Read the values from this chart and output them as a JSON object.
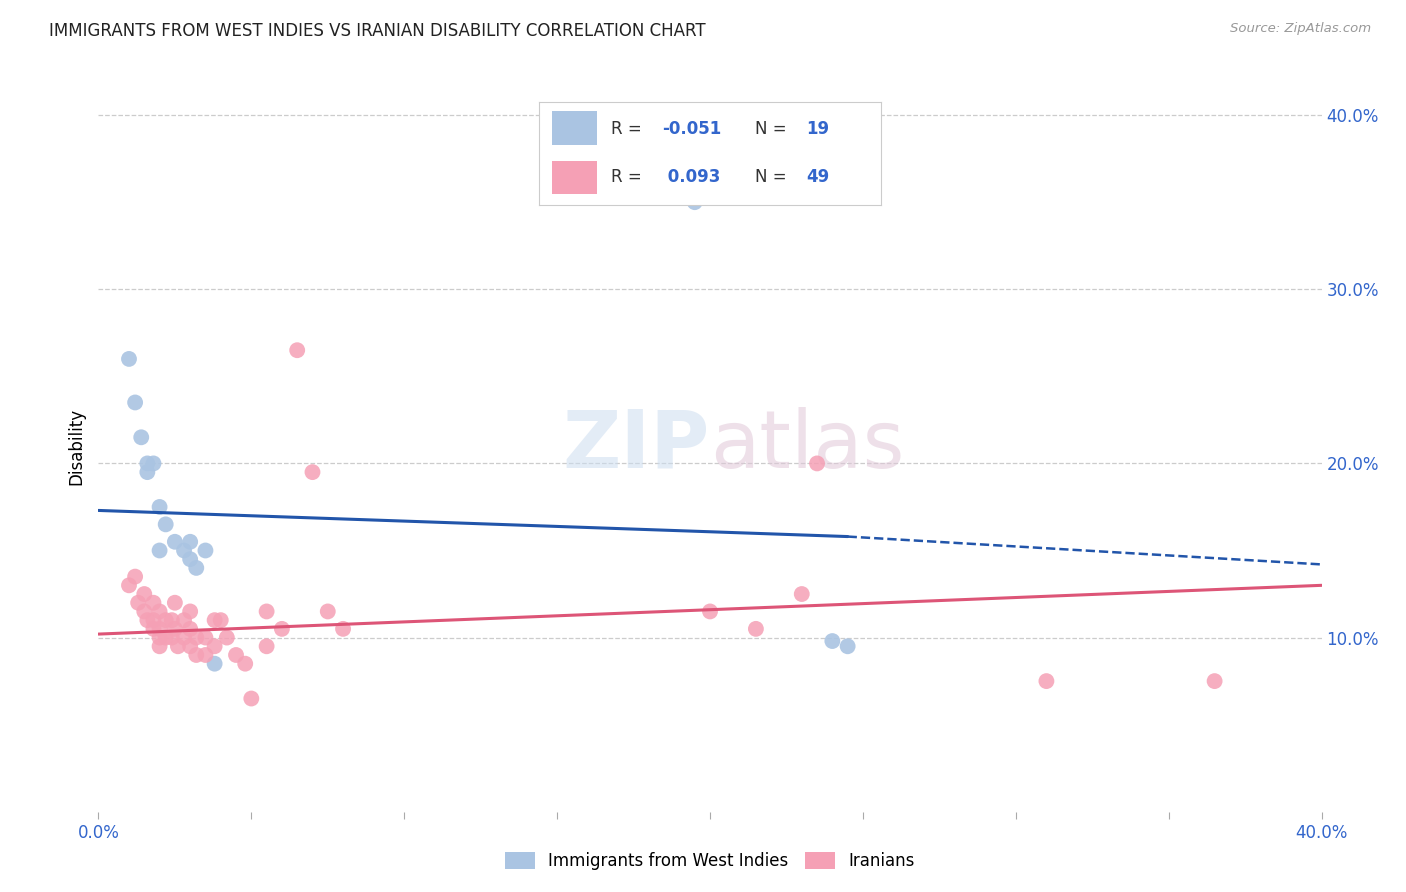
{
  "title": "IMMIGRANTS FROM WEST INDIES VS IRANIAN DISABILITY CORRELATION CHART",
  "source": "Source: ZipAtlas.com",
  "ylabel": "Disability",
  "xlim": [
    0.0,
    0.4
  ],
  "ylim": [
    0.0,
    0.42
  ],
  "R_blue": -0.051,
  "N_blue": 19,
  "R_pink": 0.093,
  "N_pink": 49,
  "blue_color": "#aac4e2",
  "pink_color": "#f5a0b5",
  "line_blue_color": "#2255aa",
  "line_pink_color": "#dd5577",
  "blue_scatter": [
    [
      0.01,
      0.26
    ],
    [
      0.012,
      0.235
    ],
    [
      0.014,
      0.215
    ],
    [
      0.016,
      0.2
    ],
    [
      0.016,
      0.195
    ],
    [
      0.018,
      0.2
    ],
    [
      0.02,
      0.175
    ],
    [
      0.02,
      0.15
    ],
    [
      0.022,
      0.165
    ],
    [
      0.025,
      0.155
    ],
    [
      0.028,
      0.15
    ],
    [
      0.03,
      0.155
    ],
    [
      0.03,
      0.145
    ],
    [
      0.032,
      0.14
    ],
    [
      0.035,
      0.15
    ],
    [
      0.038,
      0.085
    ],
    [
      0.195,
      0.35
    ],
    [
      0.24,
      0.098
    ],
    [
      0.245,
      0.095
    ]
  ],
  "pink_scatter": [
    [
      0.01,
      0.13
    ],
    [
      0.012,
      0.135
    ],
    [
      0.013,
      0.12
    ],
    [
      0.015,
      0.125
    ],
    [
      0.015,
      0.115
    ],
    [
      0.016,
      0.11
    ],
    [
      0.018,
      0.12
    ],
    [
      0.018,
      0.11
    ],
    [
      0.018,
      0.105
    ],
    [
      0.02,
      0.115
    ],
    [
      0.02,
      0.105
    ],
    [
      0.02,
      0.1
    ],
    [
      0.02,
      0.095
    ],
    [
      0.022,
      0.11
    ],
    [
      0.022,
      0.1
    ],
    [
      0.024,
      0.11
    ],
    [
      0.024,
      0.1
    ],
    [
      0.025,
      0.12
    ],
    [
      0.025,
      0.105
    ],
    [
      0.026,
      0.095
    ],
    [
      0.028,
      0.11
    ],
    [
      0.028,
      0.1
    ],
    [
      0.03,
      0.115
    ],
    [
      0.03,
      0.105
    ],
    [
      0.03,
      0.095
    ],
    [
      0.032,
      0.1
    ],
    [
      0.032,
      0.09
    ],
    [
      0.035,
      0.1
    ],
    [
      0.035,
      0.09
    ],
    [
      0.038,
      0.11
    ],
    [
      0.038,
      0.095
    ],
    [
      0.04,
      0.11
    ],
    [
      0.042,
      0.1
    ],
    [
      0.045,
      0.09
    ],
    [
      0.048,
      0.085
    ],
    [
      0.05,
      0.065
    ],
    [
      0.055,
      0.115
    ],
    [
      0.055,
      0.095
    ],
    [
      0.06,
      0.105
    ],
    [
      0.065,
      0.265
    ],
    [
      0.07,
      0.195
    ],
    [
      0.075,
      0.115
    ],
    [
      0.2,
      0.115
    ],
    [
      0.215,
      0.105
    ],
    [
      0.23,
      0.125
    ],
    [
      0.235,
      0.2
    ],
    [
      0.31,
      0.075
    ],
    [
      0.365,
      0.075
    ],
    [
      0.08,
      0.105
    ]
  ],
  "blue_line_x_solid_end": 0.245,
  "blue_line_x_start": 0.0,
  "blue_line_y_start": 0.173,
  "blue_line_y_solid_end": 0.158,
  "blue_line_y_dash_end": 0.142,
  "pink_line_y_start": 0.102,
  "pink_line_y_end": 0.13
}
